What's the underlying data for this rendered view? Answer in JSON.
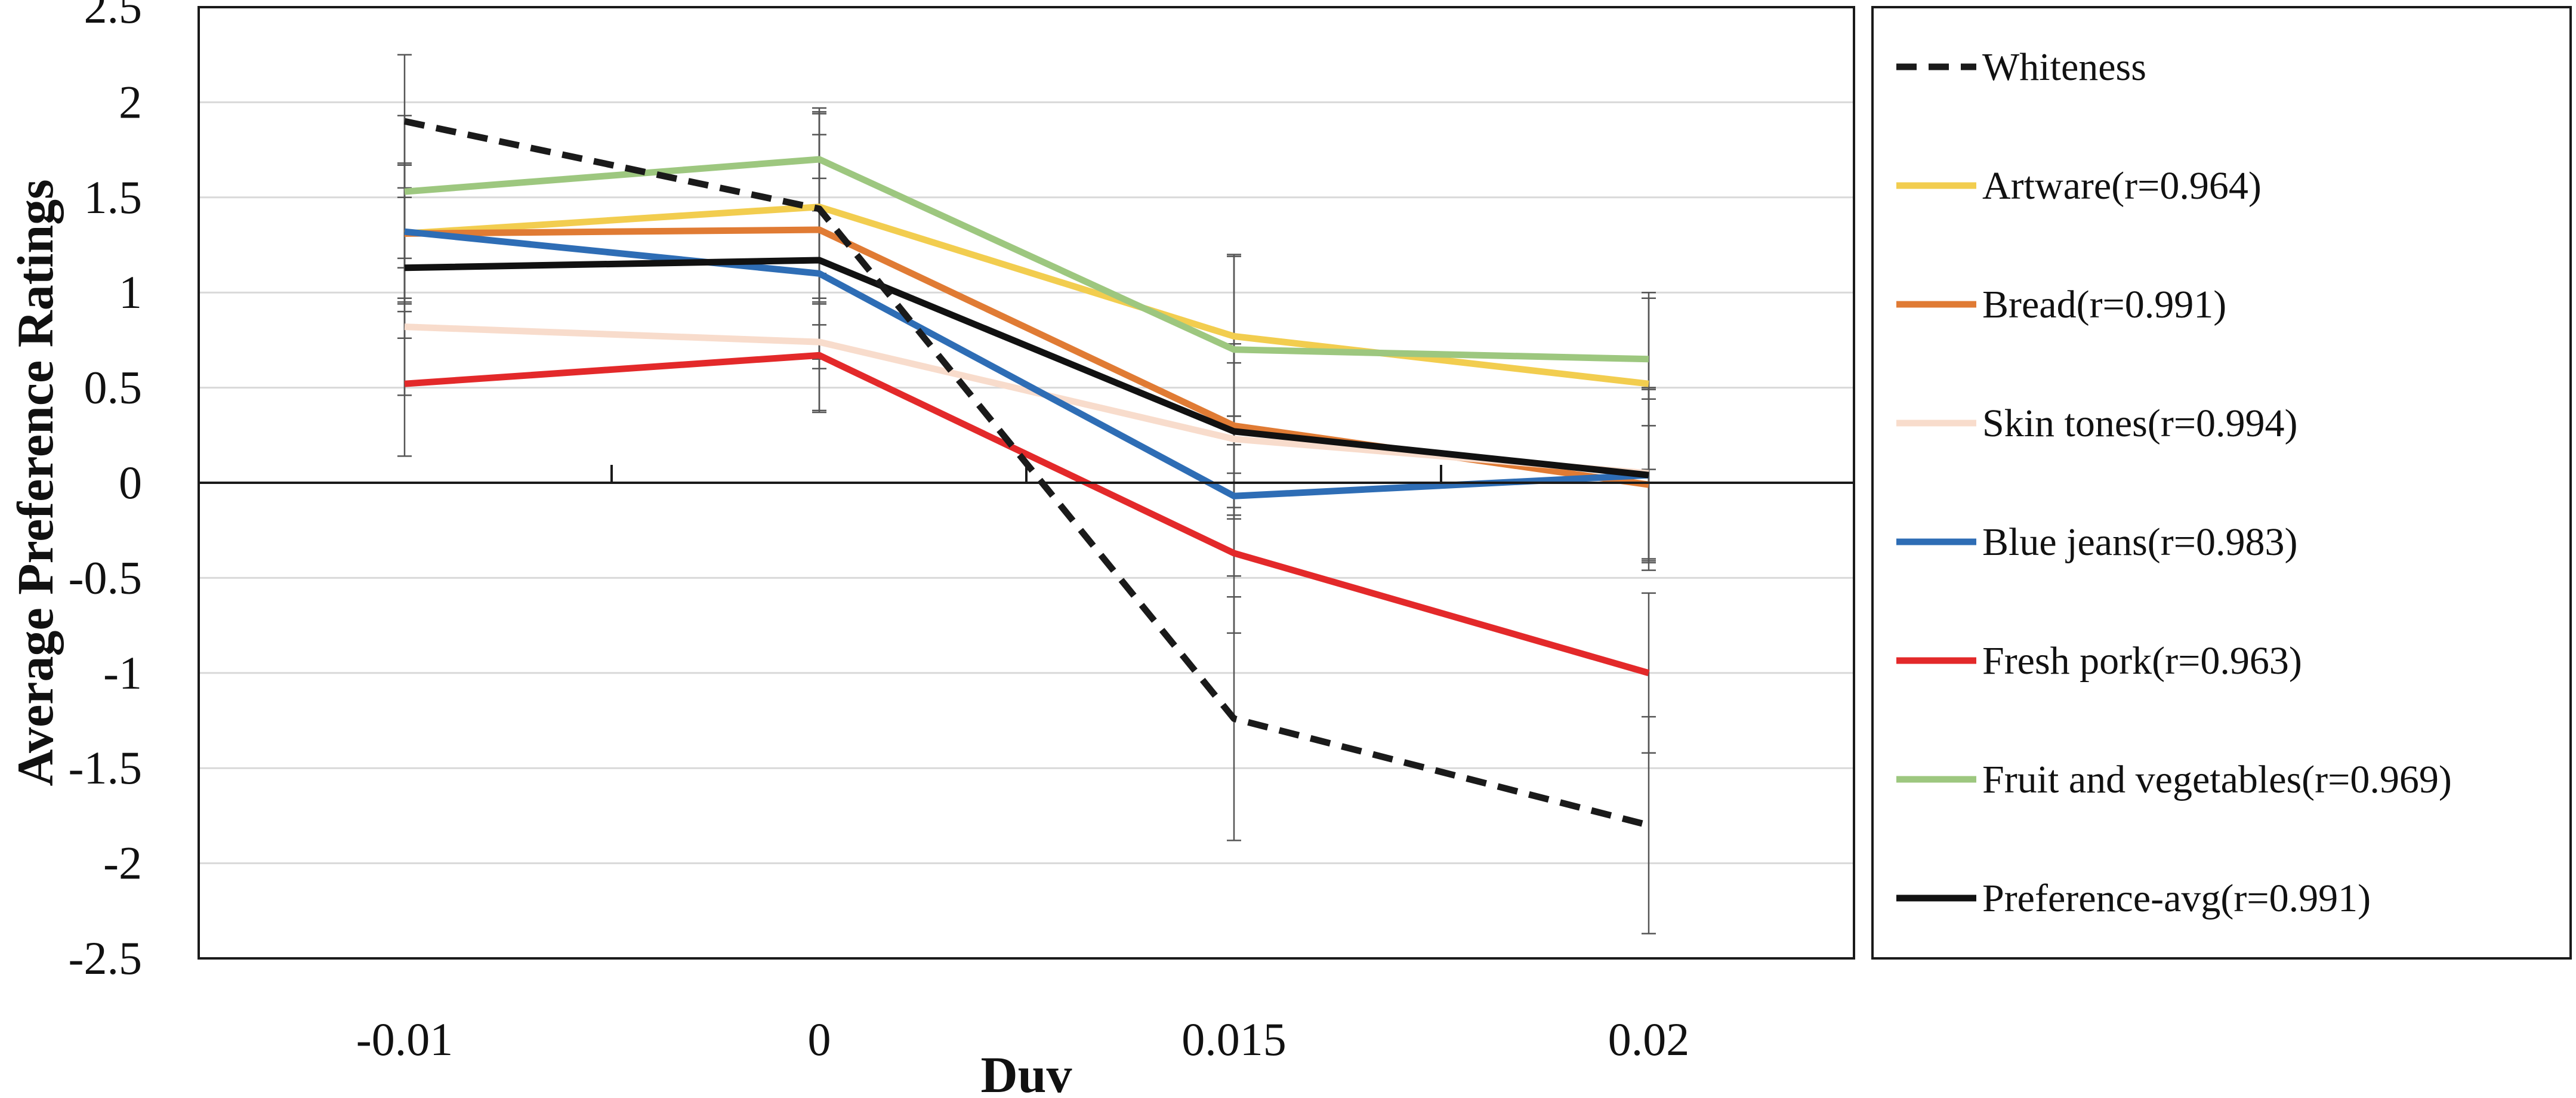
{
  "chart_data": {
    "type": "line",
    "title": "",
    "xlabel": "Duv",
    "ylabel": "Average Preference Ratings",
    "categories": [
      "-0.01",
      "0",
      "0.015",
      "0.02"
    ],
    "ylim": [
      -2.5,
      2.5
    ],
    "yticks": [
      2.5,
      2,
      1.5,
      1,
      0.5,
      0,
      -0.5,
      -1,
      -1.5,
      -2,
      -2.5
    ],
    "ytick_labels": [
      "2.5",
      "2",
      "1.5",
      "1",
      "0.5",
      "0",
      "-0.5",
      "-1",
      "-1.5",
      "-2",
      "-2.5"
    ],
    "grid": true,
    "legend_position": "right",
    "series": [
      {
        "name": "Whiteness",
        "color": "#1a1a1a",
        "dashed": true,
        "values": [
          1.9,
          1.44,
          -1.24,
          -1.8
        ],
        "err": [
          0.35,
          0.5,
          0.64,
          0.57
        ]
      },
      {
        "name": "Artware(r=0.964)",
        "color": "#f2cd4f",
        "dashed": false,
        "values": [
          1.31,
          1.45,
          0.77,
          0.52
        ],
        "err": [
          0.37,
          0.5,
          0.42,
          0.45
        ]
      },
      {
        "name": "Bread(r=0.991)",
        "color": "#e07b34",
        "dashed": false,
        "values": [
          1.31,
          1.33,
          0.3,
          -0.01
        ],
        "err": [
          0.36,
          0.5,
          0.43,
          0.45
        ]
      },
      {
        "name": "Skin tones(r=0.994)",
        "color": "#f8dccc",
        "dashed": false,
        "values": [
          0.82,
          0.74,
          0.23,
          0.05
        ],
        "err": [
          0.36,
          0.36,
          0.4,
          0.45
        ]
      },
      {
        "name": "Blue jeans(r=0.983)",
        "color": "#2e6db5",
        "dashed": false,
        "values": [
          1.32,
          1.1,
          -0.07,
          0.04
        ],
        "err": [
          0.35,
          0.5,
          0.42,
          0.45
        ]
      },
      {
        "name": "Fresh pork(r=0.963)",
        "color": "#e3292a",
        "dashed": false,
        "values": [
          0.52,
          0.67,
          -0.37,
          -1.0
        ],
        "err": [
          0.38,
          0.3,
          0.42,
          0.42
        ]
      },
      {
        "name": "Fruit and vegetables(r=0.969)",
        "color": "#9dc77f",
        "dashed": false,
        "values": [
          1.53,
          1.7,
          0.7,
          0.65
        ],
        "err": [
          0.4,
          0.27,
          0.5,
          0.35
        ]
      },
      {
        "name": "Preference-avg(r=0.991)",
        "color": "#111111",
        "dashed": false,
        "values": [
          1.13,
          1.17,
          0.27,
          0.04
        ],
        "err": [
          0.37,
          0.52,
          0.46,
          0.46
        ]
      }
    ]
  }
}
